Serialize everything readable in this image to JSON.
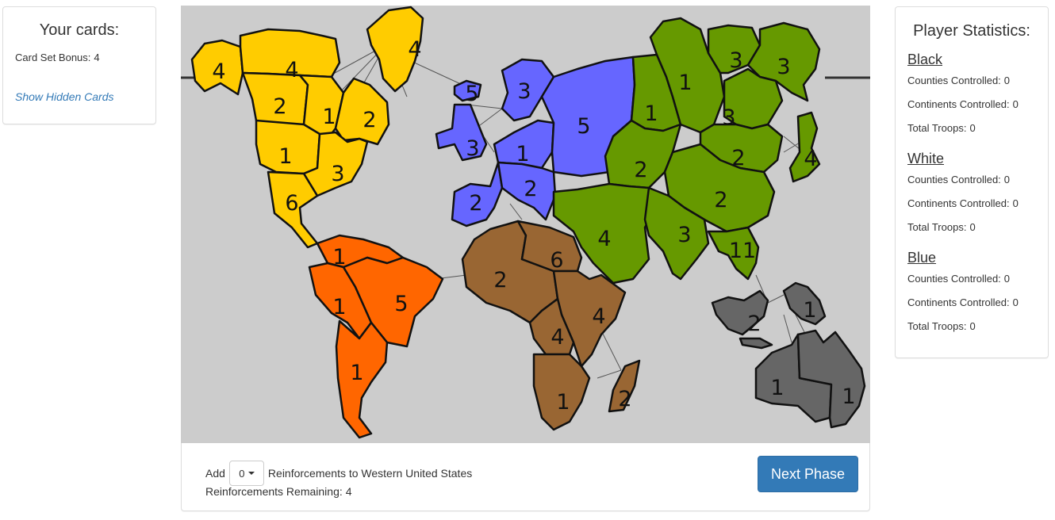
{
  "cards": {
    "title": "Your cards:",
    "bonus_label": "Card Set Bonus:",
    "bonus_value": "4",
    "show_hidden": "Show Hidden Cards"
  },
  "stats": {
    "title": "Player Statistics:",
    "counties_label": "Counties Controlled:",
    "continents_label": "Continents Controlled:",
    "troops_label": "Total Troops:",
    "players": [
      {
        "name": "Black",
        "counties": "0",
        "continents": "0",
        "troops": "0"
      },
      {
        "name": "White",
        "counties": "0",
        "continents": "0",
        "troops": "0"
      },
      {
        "name": "Blue",
        "counties": "0",
        "continents": "0",
        "troops": "0"
      }
    ]
  },
  "controls": {
    "add_label": "Add",
    "amount": "0",
    "reinforce_text": "Reinforcements to Western United States",
    "remaining_label": "Reinforcements Remaining:",
    "remaining_value": "4",
    "next_phase": "Next Phase"
  },
  "map": {
    "colors": {
      "sea": "#cccccc",
      "north_america": "#ffcc00",
      "south_america": "#ff6600",
      "europe": "#6666ff",
      "africa": "#996633",
      "asia": "#669900",
      "australia": "#666666",
      "border": "#111111"
    },
    "territories": [
      {
        "id": "alaska",
        "continent": "north_america",
        "troops": "4"
      },
      {
        "id": "northwest-territory",
        "continent": "north_america",
        "troops": "4"
      },
      {
        "id": "greenland",
        "continent": "north_america",
        "troops": "4"
      },
      {
        "id": "alberta",
        "continent": "north_america",
        "troops": "2"
      },
      {
        "id": "ontario",
        "continent": "north_america",
        "troops": "1"
      },
      {
        "id": "quebec",
        "continent": "north_america",
        "troops": "2"
      },
      {
        "id": "western-united-states",
        "continent": "north_america",
        "troops": "1"
      },
      {
        "id": "eastern-united-states",
        "continent": "north_america",
        "troops": "3"
      },
      {
        "id": "central-america",
        "continent": "north_america",
        "troops": "6"
      },
      {
        "id": "venezuela",
        "continent": "south_america",
        "troops": "1"
      },
      {
        "id": "peru",
        "continent": "south_america",
        "troops": "1"
      },
      {
        "id": "brazil",
        "continent": "south_america",
        "troops": "5"
      },
      {
        "id": "argentina",
        "continent": "south_america",
        "troops": "1"
      },
      {
        "id": "iceland",
        "continent": "europe",
        "troops": "5"
      },
      {
        "id": "scandinavia",
        "continent": "europe",
        "troops": "3"
      },
      {
        "id": "great-britain",
        "continent": "europe",
        "troops": "3"
      },
      {
        "id": "northern-europe",
        "continent": "europe",
        "troops": "1"
      },
      {
        "id": "ukraine",
        "continent": "europe",
        "troops": "5"
      },
      {
        "id": "western-europe",
        "continent": "europe",
        "troops": "2"
      },
      {
        "id": "southern-europe",
        "continent": "europe",
        "troops": "2"
      },
      {
        "id": "north-africa",
        "continent": "africa",
        "troops": "2"
      },
      {
        "id": "egypt",
        "continent": "africa",
        "troops": "6"
      },
      {
        "id": "east-africa",
        "continent": "africa",
        "troops": "4"
      },
      {
        "id": "congo",
        "continent": "africa",
        "troops": "4"
      },
      {
        "id": "south-africa",
        "continent": "africa",
        "troops": "1"
      },
      {
        "id": "madagascar",
        "continent": "africa",
        "troops": "2"
      },
      {
        "id": "ural",
        "continent": "asia",
        "troops": "1"
      },
      {
        "id": "siberia",
        "continent": "asia",
        "troops": "1"
      },
      {
        "id": "yakutsk",
        "continent": "asia",
        "troops": "3"
      },
      {
        "id": "kamchatka",
        "continent": "asia",
        "troops": "3"
      },
      {
        "id": "irkutsk",
        "continent": "asia",
        "troops": "3"
      },
      {
        "id": "mongolia",
        "continent": "asia",
        "troops": "2"
      },
      {
        "id": "japan",
        "continent": "asia",
        "troops": "4"
      },
      {
        "id": "afghanistan",
        "continent": "asia",
        "troops": "2"
      },
      {
        "id": "china",
        "continent": "asia",
        "troops": "2"
      },
      {
        "id": "middle-east",
        "continent": "asia",
        "troops": "4"
      },
      {
        "id": "india",
        "continent": "asia",
        "troops": "3"
      },
      {
        "id": "siam",
        "continent": "asia",
        "troops": "11"
      },
      {
        "id": "indonesia",
        "continent": "australia",
        "troops": "2"
      },
      {
        "id": "new-guinea",
        "continent": "australia",
        "troops": "1"
      },
      {
        "id": "western-australia",
        "continent": "australia",
        "troops": "1"
      },
      {
        "id": "eastern-australia",
        "continent": "australia",
        "troops": "1"
      }
    ]
  }
}
